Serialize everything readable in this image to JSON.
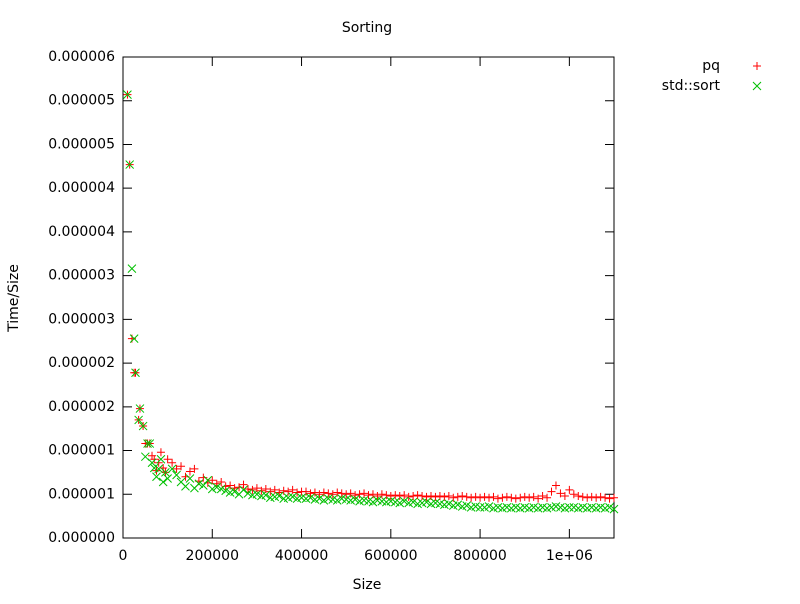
{
  "chart_data": {
    "type": "scatter",
    "title": "Sorting",
    "x_label": "Size",
    "y_label": "Time/Size",
    "legend": "right",
    "xlim": [
      0,
      1100000
    ],
    "xticks": [
      0,
      200000,
      400000,
      600000,
      800000,
      {
        "value": 1000000,
        "label": "1e+06"
      }
    ],
    "ylim": [
      0,
      5.5e-06
    ],
    "yticks": [
      {
        "value": 0,
        "label": "0.000000"
      },
      {
        "value": 5e-07,
        "label": "0.000001"
      },
      {
        "value": 1e-06,
        "label": "0.000001"
      },
      {
        "value": 1.5e-06,
        "label": "0.000002"
      },
      {
        "value": 2e-06,
        "label": "0.000002"
      },
      {
        "value": 2.5e-06,
        "label": "0.000003"
      },
      {
        "value": 3e-06,
        "label": "0.000003"
      },
      {
        "value": 3.5e-06,
        "label": "0.000004"
      },
      {
        "value": 4e-06,
        "label": "0.000004"
      },
      {
        "value": 4.5e-06,
        "label": "0.000005"
      },
      {
        "value": 5e-06,
        "label": "0.000005"
      },
      {
        "value": 5.5e-06,
        "label": "0.000006"
      }
    ],
    "x": [
      10000,
      15000,
      20000,
      25000,
      28000,
      35000,
      38000,
      45000,
      50000,
      55000,
      60000,
      65000,
      70000,
      75000,
      80000,
      85000,
      90000,
      95000,
      100000,
      110000,
      120000,
      130000,
      140000,
      150000,
      160000,
      170000,
      180000,
      190000,
      200000,
      210000,
      220000,
      230000,
      240000,
      250000,
      260000,
      270000,
      280000,
      290000,
      300000,
      310000,
      320000,
      330000,
      340000,
      350000,
      360000,
      370000,
      380000,
      390000,
      400000,
      410000,
      420000,
      430000,
      440000,
      450000,
      460000,
      470000,
      480000,
      490000,
      500000,
      510000,
      520000,
      530000,
      540000,
      550000,
      560000,
      570000,
      580000,
      590000,
      600000,
      610000,
      620000,
      630000,
      640000,
      650000,
      660000,
      670000,
      680000,
      690000,
      700000,
      710000,
      720000,
      730000,
      740000,
      750000,
      760000,
      770000,
      780000,
      790000,
      800000,
      810000,
      820000,
      830000,
      840000,
      850000,
      860000,
      870000,
      880000,
      890000,
      900000,
      910000,
      920000,
      930000,
      940000,
      950000,
      960000,
      970000,
      980000,
      990000,
      1000000,
      1010000,
      1020000,
      1030000,
      1040000,
      1050000,
      1060000,
      1070000,
      1080000,
      1090000,
      1100000
    ],
    "series": [
      {
        "name": "pq",
        "color": "#ff0000",
        "marker": "plus",
        "values": [
          5.07e-06,
          4.27e-06,
          2.28e-06,
          1.89e-06,
          1.89e-06,
          1.35e-06,
          1.48e-06,
          1.28e-06,
          1.08e-06,
          1.08e-06,
          1.08e-06,
          9.4e-07,
          9e-07,
          7.7e-07,
          8.6e-07,
          9.8e-07,
          8e-07,
          7.5e-07,
          9e-07,
          8.6e-07,
          7.9e-07,
          8.2e-07,
          7e-07,
          7.6e-07,
          7.9e-07,
          6.5e-07,
          6.9e-07,
          6.3e-07,
          6.6e-07,
          6.2e-07,
          6.4e-07,
          5.9e-07,
          6e-07,
          5.7e-07,
          5.8e-07,
          6.1e-07,
          5.6e-07,
          5.5e-07,
          5.7e-07,
          5.4e-07,
          5.6e-07,
          5.3e-07,
          5.5e-07,
          5.2e-07,
          5.4e-07,
          5.3e-07,
          5.5e-07,
          5.2e-07,
          5.3e-07,
          5.3e-07,
          5.1e-07,
          5.2e-07,
          5e-07,
          5.2e-07,
          5.1e-07,
          5e-07,
          5.2e-07,
          5.1e-07,
          5e-07,
          5.1e-07,
          4.9e-07,
          5e-07,
          5.1e-07,
          4.9e-07,
          5e-07,
          4.8e-07,
          5e-07,
          4.9e-07,
          4.8e-07,
          4.9e-07,
          4.8e-07,
          4.9e-07,
          4.7e-07,
          4.8e-07,
          4.9e-07,
          4.8e-07,
          4.7e-07,
          4.8e-07,
          4.7e-07,
          4.8e-07,
          4.7e-07,
          4.8e-07,
          4.6e-07,
          4.7e-07,
          4.8e-07,
          4.7e-07,
          4.6e-07,
          4.7e-07,
          4.6e-07,
          4.7e-07,
          4.6e-07,
          4.7e-07,
          4.5e-07,
          4.6e-07,
          4.7e-07,
          4.6e-07,
          4.5e-07,
          4.6e-07,
          4.7e-07,
          4.6e-07,
          4.7e-07,
          4.5e-07,
          4.8e-07,
          4.6e-07,
          5.3e-07,
          6e-07,
          5.1e-07,
          4.8e-07,
          5.5e-07,
          5e-07,
          4.8e-07,
          4.7e-07,
          4.6e-07,
          4.7e-07,
          4.6e-07,
          4.7e-07,
          4.6e-07,
          4.5e-07,
          4.6e-07
        ]
      },
      {
        "name": "std::sort",
        "color": "#00c000",
        "marker": "cross",
        "values": [
          5.07e-06,
          4.27e-06,
          3.08e-06,
          2.28e-06,
          1.89e-06,
          1.35e-06,
          1.48e-06,
          1.28e-06,
          9.3e-07,
          1.08e-06,
          1.08e-06,
          8.6e-07,
          8e-07,
          7e-07,
          7.9e-07,
          9e-07,
          6.4e-07,
          7.5e-07,
          6.8e-07,
          7.9e-07,
          7.2e-07,
          6.4e-07,
          5.9e-07,
          6.8e-07,
          5.7e-07,
          6.2e-07,
          6e-07,
          6.6e-07,
          5.6e-07,
          5.8e-07,
          5.6e-07,
          5.4e-07,
          5.2e-07,
          5.3e-07,
          5e-07,
          5.5e-07,
          5.1e-07,
          4.9e-07,
          5e-07,
          4.8e-07,
          4.9e-07,
          4.6e-07,
          4.7e-07,
          4.8e-07,
          4.5e-07,
          4.6e-07,
          4.7e-07,
          4.5e-07,
          4.6e-07,
          4.5e-07,
          4.6e-07,
          4.4e-07,
          4.5e-07,
          4.3e-07,
          4.5e-07,
          4.4e-07,
          4.3e-07,
          4.5e-07,
          4.4e-07,
          4.3e-07,
          4.4e-07,
          4.2e-07,
          4.3e-07,
          4.2e-07,
          4.1e-07,
          4.3e-07,
          4.2e-07,
          4.1e-07,
          4.2e-07,
          4.1e-07,
          4e-07,
          4.2e-07,
          4e-07,
          4.1e-07,
          3.9e-07,
          4e-07,
          4.1e-07,
          3.9e-07,
          4e-07,
          3.9e-07,
          3.8e-07,
          3.9e-07,
          3.7e-07,
          3.8e-07,
          3.6e-07,
          3.7e-07,
          3.5e-07,
          3.6e-07,
          3.5e-07,
          3.5e-07,
          3.6e-07,
          3.4e-07,
          3.5e-07,
          3.4e-07,
          3.5e-07,
          3.4e-07,
          3.5e-07,
          3.4e-07,
          3.5e-07,
          3.4e-07,
          3.5e-07,
          3.4e-07,
          3.5e-07,
          3.4e-07,
          3.5e-07,
          3.6e-07,
          3.5e-07,
          3.4e-07,
          3.5e-07,
          3.5e-07,
          3.4e-07,
          3.5e-07,
          3.4e-07,
          3.5e-07,
          3.4e-07,
          3.5e-07,
          3.4e-07,
          3.5e-07,
          3.3e-07
        ]
      }
    ]
  }
}
